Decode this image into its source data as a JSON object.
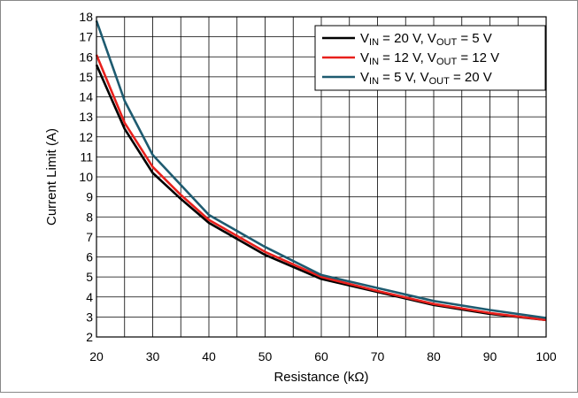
{
  "chart_data": {
    "type": "line",
    "xlabel": "Resistance (kΩ)",
    "ylabel": "Current Limit (A)",
    "xlim": [
      20,
      100
    ],
    "ylim": [
      2,
      18
    ],
    "x_ticks": [
      20,
      30,
      40,
      50,
      60,
      70,
      80,
      90,
      100
    ],
    "y_ticks": [
      2,
      3,
      4,
      5,
      6,
      7,
      8,
      9,
      10,
      11,
      12,
      13,
      14,
      15,
      16,
      17,
      18
    ],
    "x_minor_step": 5,
    "grid": true,
    "legend_position": "top-right",
    "series": [
      {
        "legend": {
          "v1": "V",
          "s1": "IN",
          "t1": " = 20 V, V",
          "s2": "OUT",
          "t2": " = 5 V"
        },
        "color": "#000000",
        "x": [
          20,
          25,
          30,
          35,
          40,
          50,
          60,
          70,
          80,
          90,
          100
        ],
        "y": [
          15.6,
          12.4,
          10.2,
          8.9,
          7.7,
          6.1,
          4.9,
          4.25,
          3.6,
          3.15,
          2.85
        ]
      },
      {
        "legend": {
          "v1": "V",
          "s1": "IN",
          "t1": " = 12 V, V",
          "s2": "OUT",
          "t2": " = 12 V"
        },
        "color": "#e8201c",
        "x": [
          20,
          25,
          30,
          35,
          40,
          50,
          60,
          70,
          80,
          90,
          100
        ],
        "y": [
          16.1,
          12.7,
          10.5,
          9.1,
          7.85,
          6.25,
          5.0,
          4.3,
          3.65,
          3.2,
          2.85
        ]
      },
      {
        "legend": {
          "v1": "V",
          "s1": "IN",
          "t1": " = 5 V, V",
          "s2": "OUT",
          "t2": " = 20 V"
        },
        "color": "#1e5b70",
        "x": [
          20,
          25,
          30,
          35,
          40,
          50,
          60,
          70,
          80,
          90,
          100
        ],
        "y": [
          17.8,
          13.8,
          11.1,
          9.6,
          8.1,
          6.5,
          5.1,
          4.45,
          3.8,
          3.35,
          2.95
        ]
      }
    ]
  }
}
